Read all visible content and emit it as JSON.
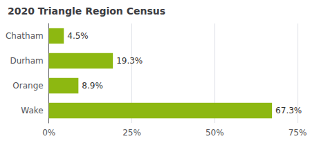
{
  "chart_data": {
    "type": "bar",
    "orientation": "horizontal",
    "title": "2020 Triangle Region Census",
    "categories": [
      "Wake",
      "Orange",
      "Durham",
      "Chatham"
    ],
    "values": [
      67.3,
      8.9,
      19.3,
      4.5
    ],
    "value_labels": [
      "67.3%",
      "8.9%",
      "19.3%",
      "4.5%"
    ],
    "data_labels": true,
    "color": "#8db811",
    "xlim": [
      0,
      75
    ],
    "xticks": [
      {
        "value": 0,
        "label": "0%"
      },
      {
        "value": 25,
        "label": "25%"
      },
      {
        "value": 50,
        "label": "50%"
      },
      {
        "value": 75,
        "label": "75%"
      }
    ],
    "grid": true
  }
}
